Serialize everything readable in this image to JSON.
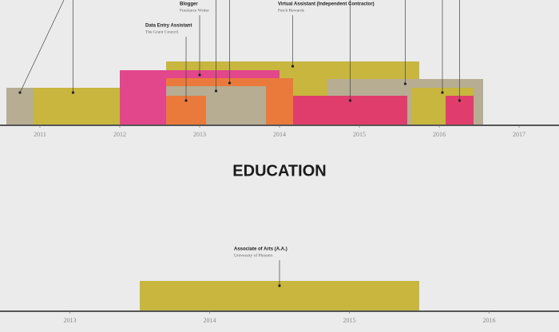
{
  "chart_data": [
    {
      "type": "timeline",
      "xlim": [
        2010.5,
        2017.5
      ],
      "xticks": [
        2011,
        2012,
        2013,
        2014,
        2015,
        2016,
        2017
      ],
      "tasks": [
        {
          "start": 2010.58,
          "end": 2012.25,
          "color": "#c8b63e"
        },
        {
          "start": 2010.58,
          "end": 2010.92,
          "color": "#b6ad93"
        },
        {
          "start": 2012.58,
          "end": 2015.75,
          "color": "#c8b63e",
          "name": "Virtual Assistant (Independent Contractor)",
          "org": "Fetch Rewards"
        },
        {
          "start": 2012.0,
          "end": 2014.0,
          "color": "#e2468b",
          "name": "Blogger",
          "org": "Freelance Writer"
        },
        {
          "start": 2012.58,
          "end": 2014.17,
          "color": "#ea7a3c"
        },
        {
          "start": 2012.58,
          "end": 2013.83,
          "color": "#b6ad93"
        },
        {
          "start": 2012.58,
          "end": 2013.08,
          "color": "#ea7a3c",
          "name": "Data Entry Assistant",
          "org": "The Grant Council"
        },
        {
          "start": 2014.6,
          "end": 2016.55,
          "color": "#b6ad93"
        },
        {
          "start": 2014.17,
          "end": 2015.6,
          "color": "#e03d6c"
        },
        {
          "start": 2015.65,
          "end": 2016.43,
          "color": "#c8b63e"
        },
        {
          "start": 2016.08,
          "end": 2016.43,
          "color": "#e03d6c"
        }
      ]
    },
    {
      "type": "timeline",
      "title": "EDUCATION",
      "xlim": [
        2012.5,
        2016.5
      ],
      "xticks": [
        2013,
        2014,
        2015,
        2016
      ],
      "tasks": [
        {
          "start": 2013.5,
          "end": 2015.5,
          "color": "#c8b63e",
          "name": "Associate of Arts (A.A.)",
          "org": "University of Phoenix"
        }
      ]
    }
  ]
}
